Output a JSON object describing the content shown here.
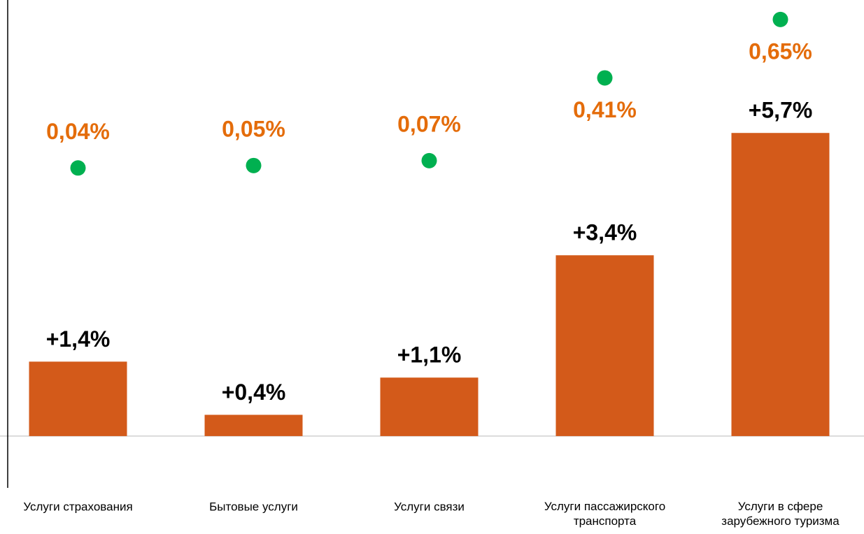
{
  "chart_data": {
    "type": "bar",
    "categories": [
      "Услуги страхования",
      "Бытовые услуги",
      "Услуги связи",
      "Услуги пассажирского транспорта",
      "Услуги в сфере зарубежного туризма"
    ],
    "series": [
      {
        "type": "bar",
        "color": "#d35a1a",
        "values": [
          1.4,
          0.4,
          1.1,
          3.4,
          5.7
        ],
        "value_labels": [
          "+1,4%",
          "+0,4%",
          "+1,1%",
          "+3,4%",
          "+5,7%"
        ]
      },
      {
        "type": "scatter",
        "axis": "y2",
        "color": "#00b050",
        "label_color": "#e46c0a",
        "values": [
          0.04,
          0.05,
          0.07,
          0.41,
          0.65
        ],
        "value_labels": [
          "0,04%",
          "0,05%",
          "0,07%",
          "0,41%",
          "0,65%"
        ]
      }
    ],
    "ylim": [
      -1,
      8.2
    ],
    "y2lim": [
      -1.28,
      0.73
    ]
  }
}
